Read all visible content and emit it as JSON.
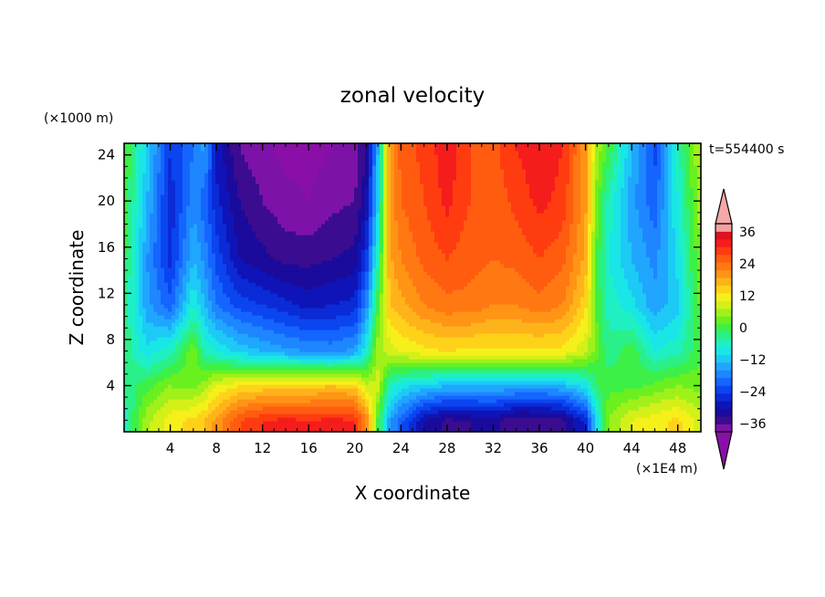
{
  "chart_data": {
    "type": "heatmap",
    "title": "zonal velocity",
    "xlabel": "X coordinate",
    "ylabel": "Z coordinate",
    "x_unit": "(×1E4 m)",
    "y_unit": "(×1000 m)",
    "time_label": "t=554400 s",
    "xlim": [
      0,
      50
    ],
    "ylim": [
      0,
      25
    ],
    "x_ticks": [
      4,
      8,
      12,
      16,
      20,
      24,
      28,
      32,
      36,
      40,
      44,
      48
    ],
    "y_ticks": [
      4,
      8,
      12,
      16,
      20,
      24
    ],
    "colorbar": {
      "levels": [
        -42,
        -39,
        -36,
        -33,
        -30,
        -27,
        -24,
        -21,
        -18,
        -15,
        -12,
        -9,
        -6,
        -3,
        0,
        3,
        6,
        9,
        12,
        15,
        18,
        21,
        24,
        27,
        30,
        33,
        36,
        39,
        42
      ],
      "labels": [
        -36,
        -24,
        -12,
        0,
        12,
        24,
        36
      ],
      "colors": [
        "#7d12a8",
        "#3b0c8f",
        "#1a0b9c",
        "#0f14b8",
        "#0a2bd6",
        "#0b45f0",
        "#1565ff",
        "#1e86ff",
        "#20a6ff",
        "#1ccaf5",
        "#19e6e6",
        "#1ff0c3",
        "#2af089",
        "#3cf048",
        "#6af01e",
        "#a0f01a",
        "#d4f019",
        "#f5f01a",
        "#ffd21a",
        "#ffb31a",
        "#ff9415",
        "#ff7812",
        "#ff5c10",
        "#ff3c10",
        "#f51c1c",
        "#e0101e",
        "#f4a0a0"
      ],
      "under_color": "#8a0fa8",
      "over_color": "#f4a8a8"
    },
    "columns": [
      {
        "x": 0.0,
        "u": [
          -5,
          -2,
          -1,
          0,
          1,
          3,
          4
        ]
      },
      {
        "x": 2.0,
        "u": [
          8,
          2,
          -8,
          -14,
          -15,
          -12,
          -10
        ]
      },
      {
        "x": 4.0,
        "u": [
          14,
          6,
          -4,
          -20,
          -25,
          -26,
          -24
        ]
      },
      {
        "x": 6.0,
        "u": [
          16,
          5,
          5,
          -6,
          -12,
          -16,
          -18
        ]
      },
      {
        "x": 7.0,
        "u": [
          18,
          8,
          -4,
          -12,
          -16,
          -20,
          -14
        ]
      },
      {
        "x": 8.0,
        "u": [
          22,
          12,
          -6,
          -18,
          -22,
          -26,
          -28
        ]
      },
      {
        "x": 10.0,
        "u": [
          30,
          15,
          -10,
          -22,
          -30,
          -33,
          -36
        ]
      },
      {
        "x": 12.0,
        "u": [
          33,
          16,
          -12,
          -24,
          -32,
          -36,
          -38
        ]
      },
      {
        "x": 14.0,
        "u": [
          34,
          16,
          -14,
          -26,
          -34,
          -38,
          -40
        ]
      },
      {
        "x": 16.0,
        "u": [
          33,
          17,
          -15,
          -28,
          -34,
          -39,
          -40
        ]
      },
      {
        "x": 18.0,
        "u": [
          34,
          18,
          -16,
          -27,
          -33,
          -37,
          -39
        ]
      },
      {
        "x": 20.0,
        "u": [
          33,
          17,
          -14,
          -26,
          -32,
          -36,
          -38
        ]
      },
      {
        "x": 21.0,
        "u": [
          24,
          10,
          -6,
          -16,
          -24,
          -30,
          -33
        ]
      },
      {
        "x": 22.0,
        "u": [
          2,
          10,
          8,
          2,
          -4,
          -10,
          -12
        ]
      },
      {
        "x": 23.0,
        "u": [
          -14,
          -4,
          10,
          18,
          20,
          22,
          22
        ]
      },
      {
        "x": 24.0,
        "u": [
          -20,
          -8,
          12,
          20,
          24,
          27,
          28
        ]
      },
      {
        "x": 26.0,
        "u": [
          -30,
          -10,
          14,
          24,
          28,
          30,
          31
        ]
      },
      {
        "x": 28.0,
        "u": [
          -34,
          -12,
          15,
          26,
          30,
          34,
          35
        ]
      },
      {
        "x": 30.0,
        "u": [
          -33,
          -12,
          14,
          26,
          28,
          30,
          30
        ]
      },
      {
        "x": 32.0,
        "u": [
          -32,
          -12,
          14,
          24,
          27,
          28,
          29
        ]
      },
      {
        "x": 34.0,
        "u": [
          -36,
          -13,
          14,
          24,
          28,
          31,
          33
        ]
      },
      {
        "x": 36.0,
        "u": [
          -35,
          -14,
          14,
          26,
          30,
          34,
          35
        ]
      },
      {
        "x": 38.0,
        "u": [
          -34,
          -12,
          14,
          24,
          28,
          32,
          33
        ]
      },
      {
        "x": 40.0,
        "u": [
          -26,
          -8,
          10,
          16,
          20,
          22,
          22
        ]
      },
      {
        "x": 41.0,
        "u": [
          -8,
          0,
          4,
          2,
          2,
          4,
          8
        ]
      },
      {
        "x": 42.0,
        "u": [
          6,
          2,
          -2,
          -4,
          -6,
          -4,
          2
        ]
      },
      {
        "x": 44.0,
        "u": [
          12,
          2,
          2,
          -8,
          -12,
          -14,
          -12
        ]
      },
      {
        "x": 46.0,
        "u": [
          14,
          4,
          -6,
          -14,
          -16,
          -20,
          -22
        ]
      },
      {
        "x": 48.0,
        "u": [
          16,
          6,
          -4,
          -10,
          -8,
          -6,
          -4
        ]
      },
      {
        "x": 50.0,
        "u": [
          10,
          5,
          2,
          4,
          6,
          8,
          10
        ]
      }
    ],
    "z_levels": [
      1,
      4,
      7,
      11,
      15,
      20,
      24.5
    ]
  }
}
